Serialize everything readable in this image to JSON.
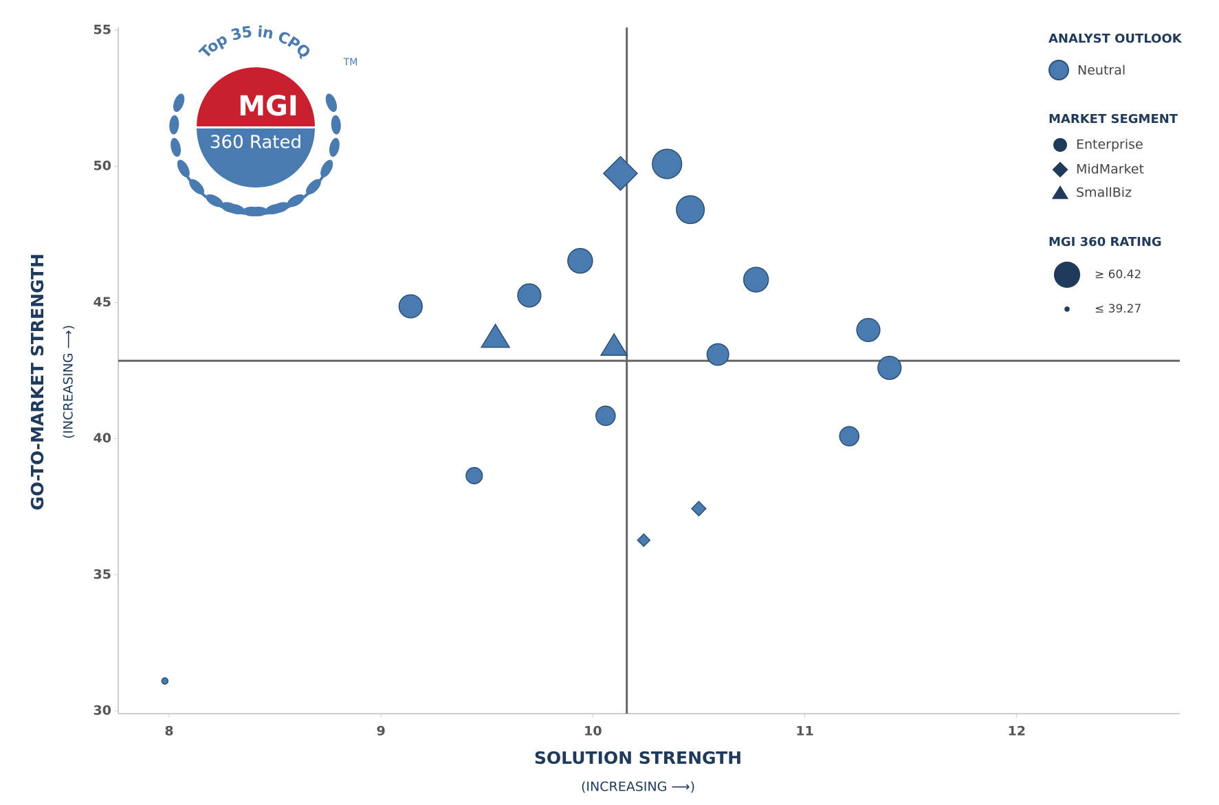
{
  "chart_data": {
    "type": "scatter",
    "xlabel": "SOLUTION STRENGTH",
    "xsublabel": "(INCREASING ⟶)",
    "ylabel": "GO-TO-MARKET STRENGTH",
    "ysublabel": "(INCREASING ⟶)",
    "xlim": [
      7.76,
      12.77
    ],
    "ylim": [
      29.9,
      55.1
    ],
    "xticks": [
      8,
      9,
      10,
      11,
      12
    ],
    "yticks": [
      30,
      35,
      40,
      45,
      50,
      55
    ],
    "quadrant_x": 10.16,
    "quadrant_y": 42.86,
    "color": "#4a7bb0",
    "edge_color": "#2b4e74",
    "series": [
      {
        "name": "Enterprise",
        "marker": "circle",
        "x": [
          10.35,
          10.46,
          9.94,
          10.77,
          9.7,
          9.14,
          11.3,
          10.59,
          11.4,
          10.06,
          11.21,
          9.44,
          7.98
        ],
        "values": [
          50.09,
          48.41,
          46.53,
          45.84,
          45.26,
          44.86,
          43.99,
          43.09,
          42.6,
          40.84,
          40.09,
          38.64,
          31.1
        ],
        "sizes": [
          59.1,
          57.8,
          55.1,
          55.1,
          53.8,
          53.8,
          53.8,
          52.5,
          53.8,
          50.5,
          50.5,
          47.9,
          39.3
        ]
      },
      {
        "name": "MidMarket",
        "marker": "diamond",
        "x": [
          10.13,
          10.5,
          10.24
        ],
        "values": [
          49.74,
          37.43,
          36.27
        ],
        "sizes": [
          59.1,
          44.6,
          43.2
        ]
      },
      {
        "name": "SmallBiz",
        "marker": "triangle",
        "x": [
          9.54,
          10.1
        ],
        "values": [
          43.73,
          43.41
        ],
        "sizes": [
          53.8,
          52.5
        ]
      }
    ],
    "outlook_title": "ANALYST OUTLOOK",
    "outlook": "Neutral",
    "segment_title": "MARKET SEGMENT",
    "size_title": "MGI 360 RATING",
    "size_legend": [
      {
        "value": 60.42,
        "label": "≥ 60.42"
      },
      {
        "value": 39.27,
        "label": "≤ 39.27"
      }
    ]
  },
  "badge": {
    "arc_text": "Top 35 in CPQ",
    "brand": "MGI",
    "rated": "360 Rated",
    "tm": "TM"
  }
}
